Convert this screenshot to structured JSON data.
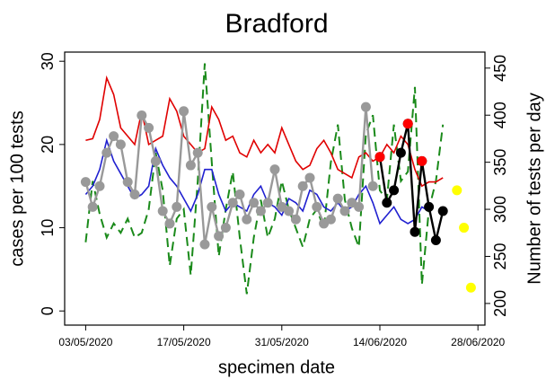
{
  "chart_data": {
    "type": "line",
    "title": "Bradford",
    "xlabel": "specimen date",
    "ylabel": "cases per 100 tests",
    "y2label": "Number of tests per day",
    "x": [
      "2020-05-03",
      "2020-05-04",
      "2020-05-05",
      "2020-05-06",
      "2020-05-07",
      "2020-05-08",
      "2020-05-09",
      "2020-05-10",
      "2020-05-11",
      "2020-05-12",
      "2020-05-13",
      "2020-05-14",
      "2020-05-15",
      "2020-05-16",
      "2020-05-17",
      "2020-05-18",
      "2020-05-19",
      "2020-05-20",
      "2020-05-21",
      "2020-05-22",
      "2020-05-23",
      "2020-05-24",
      "2020-05-25",
      "2020-05-26",
      "2020-05-27",
      "2020-05-28",
      "2020-05-29",
      "2020-05-30",
      "2020-05-31",
      "2020-06-01",
      "2020-06-02",
      "2020-06-03",
      "2020-06-04",
      "2020-06-05",
      "2020-06-06",
      "2020-06-07",
      "2020-06-08",
      "2020-06-09",
      "2020-06-10",
      "2020-06-11",
      "2020-06-12",
      "2020-06-13",
      "2020-06-14",
      "2020-06-15",
      "2020-06-16",
      "2020-06-17",
      "2020-06-18",
      "2020-06-19",
      "2020-06-20",
      "2020-06-21",
      "2020-06-22",
      "2020-06-23",
      "2020-06-24",
      "2020-06-25",
      "2020-06-26",
      "2020-06-27"
    ],
    "xlim": [
      "2020-04-30",
      "2020-06-29"
    ],
    "xticks": [
      {
        "value": "2020-05-03",
        "label": "03/05/2020"
      },
      {
        "value": "2020-05-17",
        "label": "17/05/2020"
      },
      {
        "value": "2020-05-31",
        "label": "31/05/2020"
      },
      {
        "value": "2020-06-14",
        "label": "14/06/2020"
      },
      {
        "value": "2020-06-28",
        "label": "28/06/2020"
      }
    ],
    "ylim": [
      -1.7,
      31.1
    ],
    "yticks": [
      0,
      10,
      20,
      30
    ],
    "y2lim": [
      177,
      467
    ],
    "y2ticks": [
      200,
      250,
      300,
      350,
      400,
      450
    ],
    "series": [
      {
        "color": "#1a8a1a",
        "axis": "y2",
        "line": true,
        "dash": true,
        "values": [
          265,
          330,
          295,
          270,
          285,
          275,
          290,
          270,
          275,
          300,
          360,
          320,
          240,
          290,
          300,
          230,
          330,
          455,
          350,
          250,
          300,
          340,
          270,
          210,
          270,
          310,
          270,
          290,
          330,
          300,
          280,
          260,
          290,
          300,
          280,
          350,
          390,
          310,
          280,
          260,
          380,
          400,
          320,
          310,
          390,
          330,
          340,
          430,
          220,
          300,
          330,
          390,
          null,
          null,
          null,
          null
        ]
      },
      {
        "color": "#e00000",
        "line": true,
        "values": [
          20.5,
          20.7,
          23,
          28,
          26,
          22,
          21,
          20,
          24,
          20,
          20.5,
          21,
          25.5,
          24,
          21,
          20,
          19,
          19.5,
          24.5,
          23,
          20.5,
          21,
          19,
          18.5,
          20.5,
          19,
          20,
          19,
          22,
          20,
          18,
          17,
          17.5,
          19.5,
          20.5,
          19,
          17,
          16.5,
          16,
          18.5,
          19,
          18,
          18.5,
          20,
          19,
          21,
          20,
          17,
          15,
          15.5,
          15.5,
          16,
          null,
          null,
          null,
          null
        ]
      },
      {
        "color": "#2020d0",
        "line": true,
        "values": [
          14,
          15,
          17,
          20.5,
          18,
          16.5,
          15,
          13.5,
          14,
          15,
          19.5,
          17.5,
          16,
          15,
          13.5,
          12,
          14,
          17,
          17,
          14,
          12,
          13,
          12.5,
          12,
          14,
          15,
          13,
          12.5,
          11.5,
          13.5,
          13,
          12,
          14.5,
          14,
          12.5,
          12,
          13,
          12,
          12.5,
          14,
          15,
          13,
          10.5,
          11.5,
          12.5,
          11,
          10.5,
          11,
          12.5,
          12,
          null,
          null,
          null,
          null,
          null,
          null
        ]
      },
      {
        "color": "#999999",
        "line": true,
        "marker": true,
        "values": [
          15.5,
          12.5,
          15,
          19,
          21,
          20,
          15.5,
          14,
          23.5,
          22,
          18,
          12,
          10.5,
          12.5,
          24,
          17.5,
          19,
          8,
          12.5,
          9,
          10,
          13,
          14,
          11,
          13,
          12,
          13,
          17,
          12.5,
          12,
          11,
          15,
          16,
          12.5,
          10.5,
          11,
          13.5,
          12,
          13,
          12.5,
          24.5,
          15,
          null,
          null,
          null,
          null,
          null,
          null,
          null,
          null,
          null,
          null,
          null,
          null,
          null,
          null
        ]
      },
      {
        "color": "#000000",
        "line": true,
        "marker": true,
        "values": [
          null,
          null,
          null,
          null,
          null,
          null,
          null,
          null,
          null,
          null,
          null,
          null,
          null,
          null,
          null,
          null,
          null,
          null,
          null,
          null,
          null,
          null,
          null,
          null,
          null,
          null,
          null,
          null,
          null,
          null,
          null,
          null,
          null,
          null,
          null,
          null,
          null,
          null,
          null,
          null,
          null,
          null,
          18.5,
          13,
          14.5,
          19,
          22.5,
          9.5,
          18,
          12.5,
          8.5,
          12,
          null,
          null,
          null,
          null
        ]
      },
      {
        "color": "#ff0000",
        "marker": true,
        "values": [
          null,
          null,
          null,
          null,
          null,
          null,
          null,
          null,
          null,
          null,
          null,
          null,
          null,
          null,
          null,
          null,
          null,
          null,
          null,
          null,
          null,
          null,
          null,
          null,
          null,
          null,
          null,
          null,
          null,
          null,
          null,
          null,
          null,
          null,
          null,
          null,
          null,
          null,
          null,
          null,
          null,
          null,
          18.5,
          null,
          null,
          null,
          22.5,
          null,
          18,
          null,
          null,
          null,
          null,
          null,
          null,
          null
        ]
      },
      {
        "color": "#ffff00",
        "marker": true,
        "values": [
          null,
          null,
          null,
          null,
          null,
          null,
          null,
          null,
          null,
          null,
          null,
          null,
          null,
          null,
          null,
          null,
          null,
          null,
          null,
          null,
          null,
          null,
          null,
          null,
          null,
          null,
          null,
          null,
          null,
          null,
          null,
          null,
          null,
          null,
          null,
          null,
          null,
          null,
          null,
          null,
          null,
          null,
          null,
          null,
          null,
          null,
          null,
          null,
          null,
          null,
          null,
          null,
          null,
          14.5,
          10,
          2.8
        ]
      }
    ]
  }
}
